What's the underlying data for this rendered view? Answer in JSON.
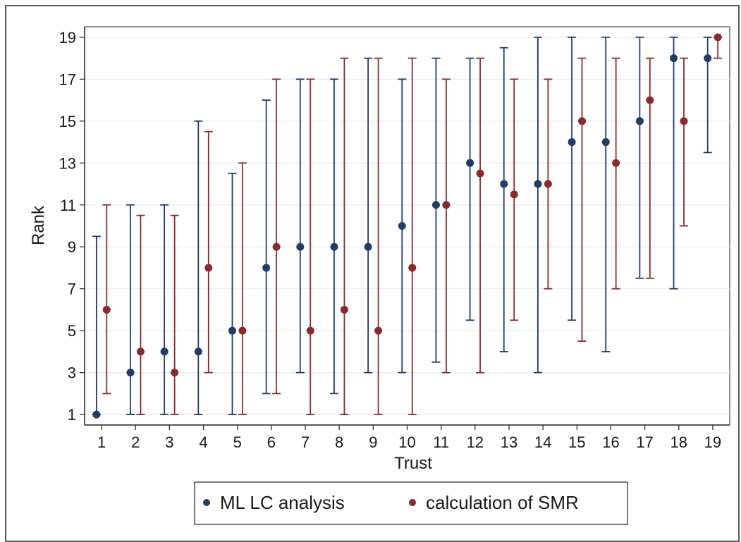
{
  "chart_data": {
    "type": "scatter",
    "xlabel": "Trust",
    "ylabel": "Rank",
    "xlim": [
      0.5,
      19.5
    ],
    "ylim": [
      0.5,
      19.5
    ],
    "x_ticks": [
      "1",
      "2",
      "3",
      "4",
      "5",
      "6",
      "7",
      "8",
      "9",
      "10",
      "11",
      "12",
      "13",
      "14",
      "15",
      "16",
      "17",
      "18",
      "19"
    ],
    "y_ticks": [
      "1",
      "3",
      "5",
      "7",
      "9",
      "11",
      "13",
      "15",
      "17",
      "19"
    ],
    "grid": "horizontal",
    "legend_position": "bottom",
    "series": [
      {
        "name": "ML LC analysis",
        "color": "#1f3d66",
        "x": [
          1,
          2,
          3,
          4,
          5,
          6,
          7,
          8,
          9,
          10,
          11,
          12,
          13,
          14,
          15,
          16,
          17,
          18,
          19
        ],
        "y": [
          1,
          3,
          4,
          4,
          5,
          8,
          9,
          9,
          9,
          10,
          11,
          13,
          12,
          12,
          14,
          14,
          15,
          18,
          18
        ],
        "lower": [
          1,
          1,
          1,
          1,
          1,
          2,
          3,
          2,
          3,
          3,
          3.5,
          5.5,
          4,
          3,
          5.5,
          4,
          7.5,
          7,
          13.5
        ],
        "upper": [
          9.5,
          11,
          11,
          15,
          12.5,
          16,
          17,
          17,
          18,
          17,
          18,
          18,
          18.5,
          19,
          19,
          19,
          19,
          19,
          19
        ]
      },
      {
        "name": "calculation of SMR",
        "color": "#8b2a2e",
        "x": [
          1,
          2,
          3,
          4,
          5,
          6,
          7,
          8,
          9,
          10,
          11,
          12,
          13,
          14,
          15,
          16,
          17,
          18,
          19
        ],
        "y": [
          6,
          4,
          3,
          8,
          5,
          9,
          5,
          6,
          5,
          8,
          11,
          12.5,
          11.5,
          12,
          15,
          13,
          16,
          15,
          19
        ],
        "lower": [
          2,
          1,
          1,
          3,
          1,
          2,
          1,
          1,
          1,
          1,
          3,
          3,
          5.5,
          7,
          4.5,
          7,
          7.5,
          10,
          18
        ],
        "upper": [
          11,
          10.5,
          10.5,
          14.5,
          13,
          17,
          17,
          18,
          18,
          18,
          17,
          18,
          17,
          17,
          18,
          18,
          18,
          18,
          19
        ]
      }
    ]
  }
}
